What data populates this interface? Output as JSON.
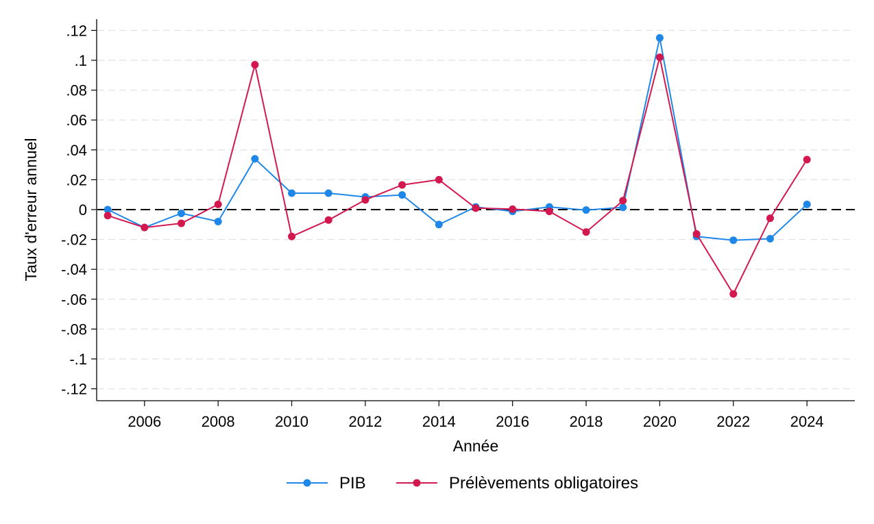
{
  "chart_data": {
    "type": "line",
    "title": "",
    "xlabel": "Année",
    "ylabel": "Taux d'erreur annuel",
    "x": [
      2005,
      2006,
      2007,
      2008,
      2009,
      2010,
      2011,
      2012,
      2013,
      2014,
      2015,
      2016,
      2017,
      2018,
      2019,
      2020,
      2021,
      2022,
      2023,
      2024
    ],
    "series": [
      {
        "name": "PIB",
        "color": "#1f87e8",
        "values": [
          0.0,
          -0.012,
          -0.0025,
          -0.008,
          0.034,
          0.011,
          0.011,
          0.0085,
          0.0098,
          -0.01,
          0.0018,
          -0.0012,
          0.0018,
          -0.0003,
          0.0015,
          0.115,
          -0.018,
          -0.0205,
          -0.0195,
          0.0035
        ]
      },
      {
        "name": "Prélèvements obligatoires",
        "color": "#d3184f",
        "values": [
          -0.004,
          -0.012,
          -0.0092,
          0.0035,
          0.097,
          -0.018,
          -0.007,
          0.0065,
          0.0165,
          0.02,
          0.001,
          0.0003,
          -0.0012,
          -0.015,
          0.006,
          0.102,
          -0.0163,
          -0.0565,
          -0.0058,
          0.0335
        ]
      }
    ],
    "xlim": [
      2004.7,
      2025.3
    ],
    "ylim": [
      -0.128,
      0.128
    ],
    "x_ticks": [
      2006,
      2008,
      2010,
      2012,
      2014,
      2016,
      2018,
      2020,
      2022,
      2024
    ],
    "x_tick_labels": [
      "2006",
      "2008",
      "2010",
      "2012",
      "2014",
      "2016",
      "2018",
      "2020",
      "2022",
      "2024"
    ],
    "y_ticks": [
      0.12,
      0.1,
      0.08,
      0.06,
      0.04,
      0.02,
      0,
      -0.02,
      -0.04,
      -0.06,
      -0.08,
      -0.1,
      -0.12
    ],
    "y_tick_labels": [
      ".12",
      ".1",
      ".08",
      ".06",
      ".04",
      ".02",
      "0",
      "-.02",
      "-.04",
      "-.06",
      "-.08",
      "-.1",
      "-.12"
    ],
    "reference_line": {
      "y": 0,
      "style": "dashed",
      "color": "#000000"
    },
    "grid": true,
    "legend_position": "bottom"
  }
}
